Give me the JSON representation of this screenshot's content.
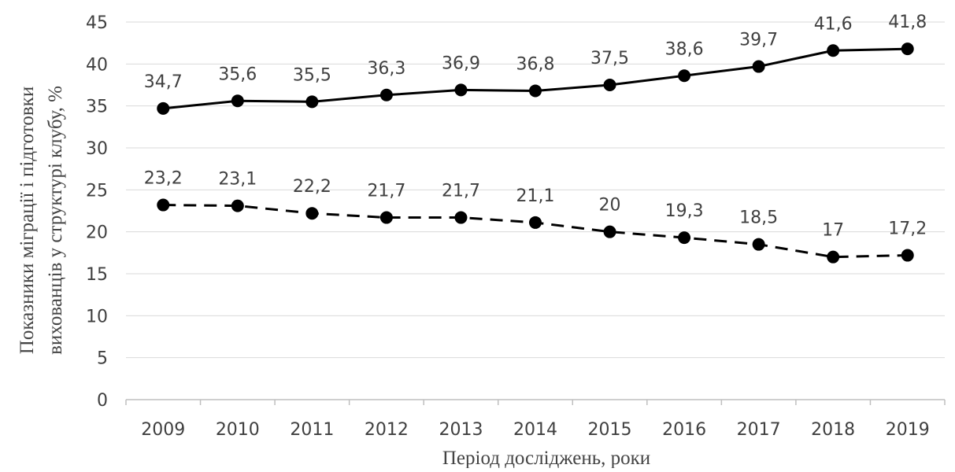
{
  "chart_data": {
    "type": "line",
    "xlabel": "Період досліджень, роки",
    "ylabel": [
      "Показники міграції і підготовки",
      "вихованців у структурі клубу, %"
    ],
    "ylim": [
      0,
      45
    ],
    "yticks": [
      0,
      5,
      10,
      15,
      20,
      25,
      30,
      35,
      40,
      45
    ],
    "categories": [
      "2009",
      "2010",
      "2011",
      "2012",
      "2013",
      "2014",
      "2015",
      "2016",
      "2017",
      "2018",
      "2019"
    ],
    "grid": true,
    "legend": "none",
    "series": [
      {
        "style": "solid",
        "color": "#000000",
        "values": [
          34.7,
          35.6,
          35.5,
          36.3,
          36.9,
          36.8,
          37.5,
          38.6,
          39.7,
          41.6,
          41.8
        ],
        "labels": [
          "34,7",
          "35,6",
          "35,5",
          "36,3",
          "36,9",
          "36,8",
          "37,5",
          "38,6",
          "39,7",
          "41,6",
          "41,8"
        ]
      },
      {
        "style": "dashed",
        "color": "#000000",
        "values": [
          23.2,
          23.1,
          22.2,
          21.7,
          21.7,
          21.1,
          20,
          19.3,
          18.5,
          17,
          17.2
        ],
        "labels": [
          "23,2",
          "23,1",
          "22,2",
          "21,7",
          "21,7",
          "21,1",
          "20",
          "19,3",
          "18,5",
          "17",
          "17,2"
        ]
      }
    ]
  }
}
